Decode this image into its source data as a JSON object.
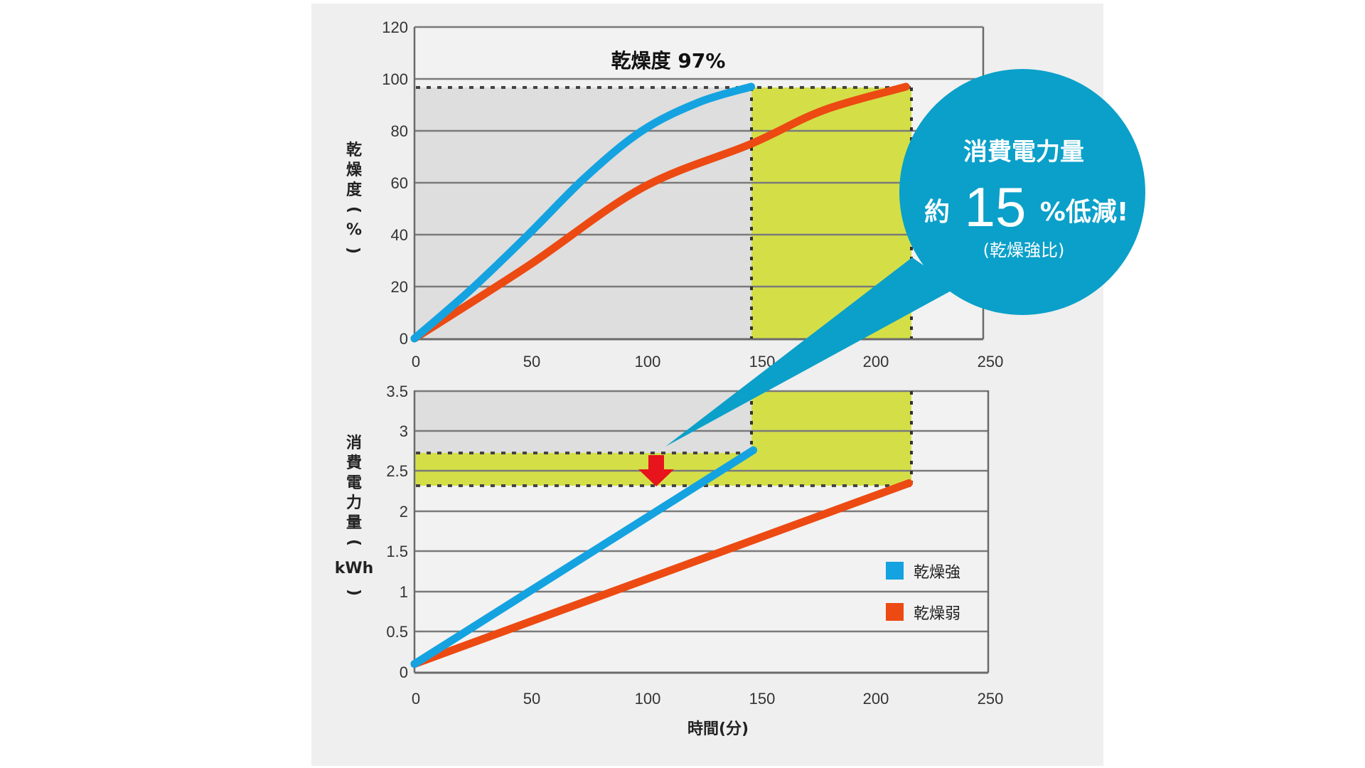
{
  "chart_data": [
    {
      "type": "line",
      "title": "乾燥度 97%",
      "xlabel": "",
      "ylabel": "乾燥度(%)",
      "xlim": [
        0,
        250
      ],
      "ylim": [
        0,
        120
      ],
      "x_ticks": [
        "0",
        "50",
        "100",
        "150",
        "200",
        "250"
      ],
      "y_ticks": [
        "0",
        "20",
        "40",
        "60",
        "80",
        "100",
        "120"
      ],
      "grid": true,
      "reference_line": {
        "y": 97,
        "style": "dotted",
        "label": "乾燥度 97%"
      },
      "highlight_region": {
        "x": [
          148,
          216
        ],
        "y": [
          0,
          97
        ],
        "color": "#d4df48"
      },
      "series": [
        {
          "name": "乾燥強",
          "color": "#14a3e0",
          "x": [
            0,
            25,
            50,
            75,
            100,
            125,
            148
          ],
          "y": [
            0,
            19,
            40,
            62,
            80,
            91,
            97
          ]
        },
        {
          "name": "乾燥弱",
          "color": "#ec4a12",
          "x": [
            0,
            50,
            100,
            148,
            180,
            216
          ],
          "y": [
            0,
            28,
            58,
            75,
            88,
            97
          ]
        }
      ]
    },
    {
      "type": "line",
      "title": "",
      "xlabel": "時間(分)",
      "ylabel": "消費電力量(kWh)",
      "xlim": [
        0,
        250
      ],
      "ylim": [
        0,
        3.5
      ],
      "x_ticks": [
        "0",
        "50",
        "100",
        "150",
        "200",
        "250"
      ],
      "y_ticks": [
        "0",
        "0.5",
        "1",
        "1.5",
        "2",
        "2.5",
        "3",
        "3.5"
      ],
      "grid": true,
      "highlight_band": {
        "y": [
          2.35,
          2.76
        ],
        "color": "#d4df48"
      },
      "highlight_region": {
        "x": [
          148,
          216
        ],
        "y": [
          2.35,
          3.5
        ],
        "color": "#d4df48"
      },
      "legend_position": "right",
      "series": [
        {
          "name": "乾燥強",
          "color": "#14a3e0",
          "x": [
            0,
            148
          ],
          "y": [
            0.1,
            2.76
          ]
        },
        {
          "name": "乾燥弱",
          "color": "#ec4a12",
          "x": [
            0,
            216
          ],
          "y": [
            0.1,
            2.35
          ]
        }
      ],
      "annotation": {
        "type": "arrow-down",
        "color": "#e8141c",
        "x": 105,
        "y_from": 2.76,
        "y_to": 2.35
      }
    }
  ],
  "top_chart": {
    "annotation": "乾燥度 97%",
    "ylabel_chars": [
      "乾",
      "燥",
      "度",
      "(",
      "%",
      ")"
    ],
    "y_ticks": [
      "0",
      "20",
      "40",
      "60",
      "80",
      "100",
      "120"
    ],
    "x_ticks": [
      "0",
      "50",
      "100",
      "150",
      "200",
      "250"
    ]
  },
  "bottom_chart": {
    "ylabel_chars": [
      "消",
      "費",
      "電",
      "力",
      "量",
      "(",
      "kWh",
      ")"
    ],
    "y_ticks": [
      "0",
      "0.5",
      "1",
      "1.5",
      "2",
      "2.5",
      "3",
      "3.5"
    ],
    "x_ticks": [
      "0",
      "50",
      "100",
      "150",
      "200",
      "250"
    ],
    "xlabel": "時間(分)"
  },
  "legend": {
    "items": [
      {
        "label": "乾燥強",
        "color": "#14a3e0"
      },
      {
        "label": "乾燥弱",
        "color": "#ec4a12"
      }
    ]
  },
  "callout": {
    "line1": "消費電力量",
    "prefix": "約",
    "number": "15",
    "suffix": "%低減!",
    "line3": "(乾燥強比)",
    "color": "#0aa0c9"
  },
  "colors": {
    "highlight": "#d4df48",
    "plot_bg_gray": "#dedede",
    "plot_bg_light": "#f2f2f2",
    "arrow": "#e8141c"
  }
}
